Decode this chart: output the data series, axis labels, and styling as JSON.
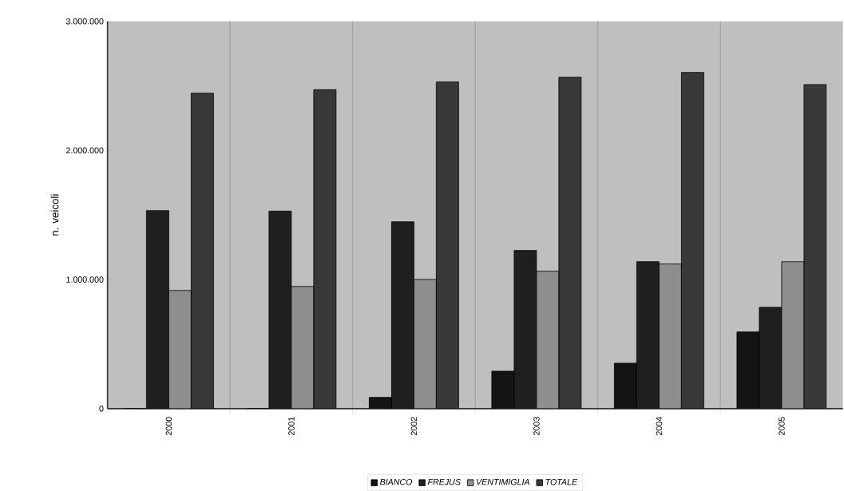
{
  "chart_data": {
    "type": "bar",
    "ylabel": "n. veicoli",
    "categories": [
      "2000",
      "2001",
      "2002",
      "2003",
      "2004",
      "2005"
    ],
    "series": [
      {
        "name": "BIANCO",
        "color": "#141414",
        "values": [
          0,
          0,
          87000,
          290000,
          352000,
          594000
        ]
      },
      {
        "name": "FREJUS",
        "color": "#1f1f1f",
        "values": [
          1534000,
          1530000,
          1447000,
          1225000,
          1138000,
          785000
        ]
      },
      {
        "name": "VENTIMIGLIA",
        "color": "#8e8e8e",
        "values": [
          915000,
          946000,
          1000000,
          1064000,
          1120000,
          1138000
        ]
      },
      {
        "name": "TOTALE",
        "color": "#383838",
        "values": [
          2443000,
          2470000,
          2530000,
          2567000,
          2604000,
          2510000
        ]
      }
    ],
    "ylim": [
      0,
      3000000
    ],
    "yticks": [
      0,
      {
        "value": 1000000,
        "label": "1.000.000"
      },
      {
        "value": 2000000,
        "label": "2.000.000"
      },
      {
        "value": 3000000,
        "label": "3.000.000"
      }
    ],
    "grid": "x",
    "legend": "bottom"
  }
}
